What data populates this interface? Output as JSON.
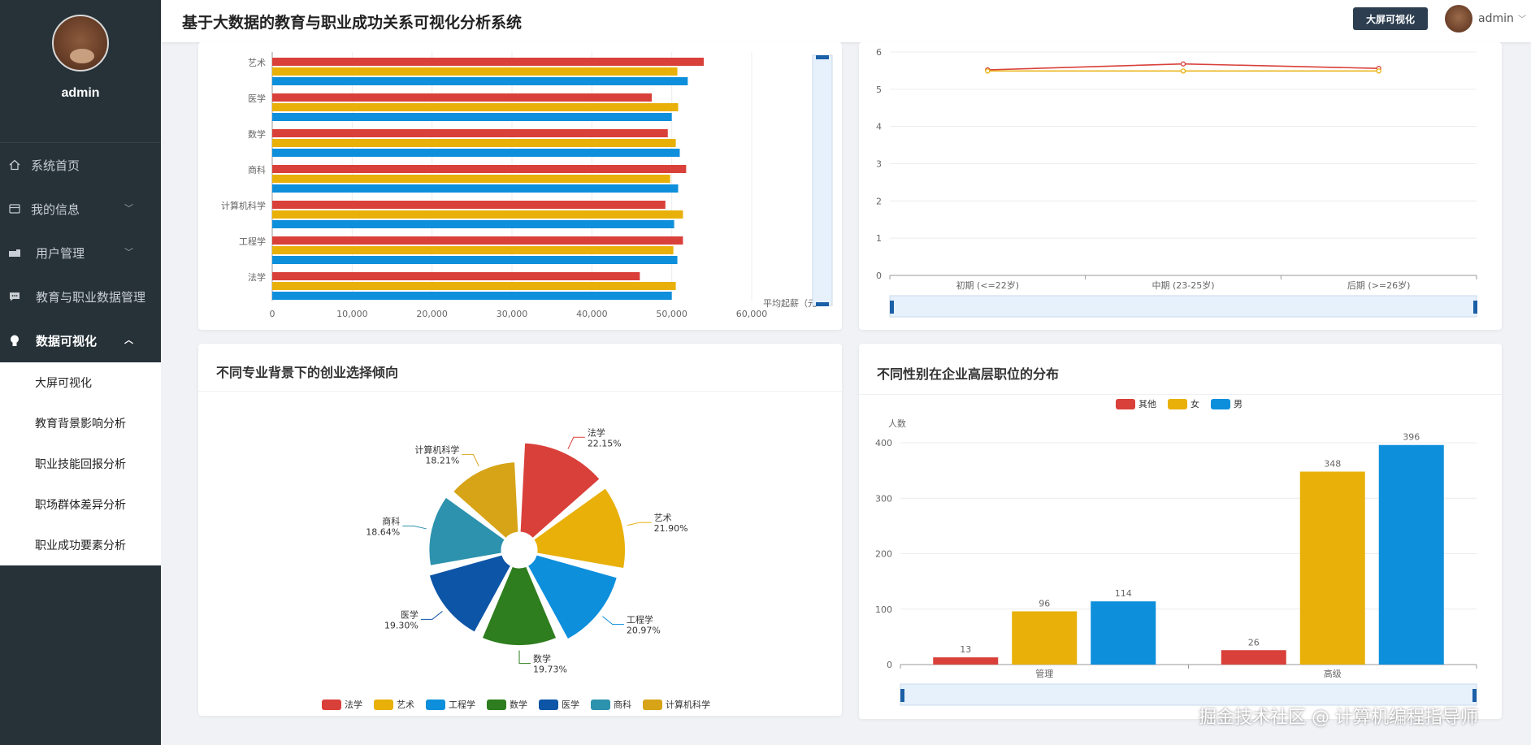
{
  "sidebar": {
    "username": "admin",
    "items": [
      {
        "label": "系统首页",
        "icon": "home-icon"
      },
      {
        "label": "我的信息",
        "icon": "card-icon"
      },
      {
        "label": "用户管理",
        "icon": "user-manage-icon"
      },
      {
        "label": "教育与职业数据管理",
        "icon": "chat-icon"
      },
      {
        "label": "数据可视化",
        "icon": "bulb-icon"
      }
    ],
    "subitems": [
      "大屏可视化",
      "教育背景影响分析",
      "职业技能回报分析",
      "职场群体差异分析",
      "职业成功要素分析"
    ]
  },
  "header": {
    "title": "基于大数据的教育与职业成功关系可视化分析系统",
    "screen_button": "大屏可视化",
    "username": "admin"
  },
  "colors": {
    "red": "#d9403a",
    "yellow": "#e8b009",
    "blue": "#0d8fdc",
    "green": "#2e7d1e",
    "darkblue": "#0d55a6",
    "teal": "#2d92ad",
    "gold": "#d7a418"
  },
  "chart_data": [
    {
      "type": "bar",
      "orientation": "horizontal",
      "categories": [
        "艺术",
        "医学",
        "数学",
        "商科",
        "计算机科学",
        "工程学",
        "法学"
      ],
      "series": [
        {
          "color": "#d9403a",
          "values": [
            54000,
            47500,
            49500,
            51800,
            49200,
            51400,
            46000
          ]
        },
        {
          "color": "#e8b009",
          "values": [
            50700,
            50800,
            50500,
            49800,
            51400,
            50200,
            50500
          ]
        },
        {
          "color": "#0d8fdc",
          "values": [
            52000,
            50000,
            51000,
            50800,
            50300,
            50700,
            50000
          ]
        }
      ],
      "xlim": [
        0,
        60000
      ],
      "xticks": [
        "0",
        "10,000",
        "20,000",
        "30,000",
        "40,000",
        "50,000",
        "60,000"
      ],
      "axis_label": "平均起薪（元）",
      "axis_label_visible": "平均起薪（元"
    },
    {
      "type": "line",
      "categories": [
        "初期 (<=22岁)",
        "中期 (23-25岁)",
        "后期 (>=26岁)"
      ],
      "series": [
        {
          "color": "#d9403a",
          "values": [
            5.52,
            5.68,
            5.56
          ]
        },
        {
          "color": "#e8b009",
          "values": [
            5.49,
            5.49,
            5.49
          ]
        }
      ],
      "ylim": [
        0,
        6
      ],
      "yticks": [
        "0",
        "1",
        "2",
        "3",
        "4",
        "5",
        "6"
      ]
    },
    {
      "type": "pie",
      "title": "不同专业背景下的创业选择倾向",
      "slices": [
        {
          "name": "法学",
          "percent": "22.15%",
          "value": 22.15,
          "color": "#d9403a"
        },
        {
          "name": "艺术",
          "percent": "21.90%",
          "value": 21.9,
          "color": "#e8b009"
        },
        {
          "name": "工程学",
          "percent": "20.97%",
          "value": 20.97,
          "color": "#0d8fdc"
        },
        {
          "name": "数学",
          "percent": "19.73%",
          "value": 19.73,
          "color": "#2e7d1e"
        },
        {
          "name": "医学",
          "percent": "19.30%",
          "value": 19.3,
          "color": "#0d55a6"
        },
        {
          "name": "商科",
          "percent": "18.64%",
          "value": 18.64,
          "color": "#2d92ad"
        },
        {
          "name": "计算机科学",
          "percent": "18.21%",
          "value": 18.21,
          "color": "#d7a418"
        }
      ]
    },
    {
      "type": "bar",
      "title": "不同性别在企业高层职位的分布",
      "categories": [
        "管理",
        "高级"
      ],
      "series": [
        {
          "name": "其他",
          "color": "#d9403a",
          "values": [
            13,
            26
          ]
        },
        {
          "name": "女",
          "color": "#e8b009",
          "values": [
            96,
            348
          ]
        },
        {
          "name": "男",
          "color": "#0d8fdc",
          "values": [
            114,
            396
          ]
        }
      ],
      "ylabel": "人数",
      "ylim": [
        0,
        400
      ],
      "yticks": [
        "0",
        "100",
        "200",
        "300",
        "400"
      ]
    }
  ],
  "watermark": "掘金技术社区 @ 计算机编程指导师"
}
